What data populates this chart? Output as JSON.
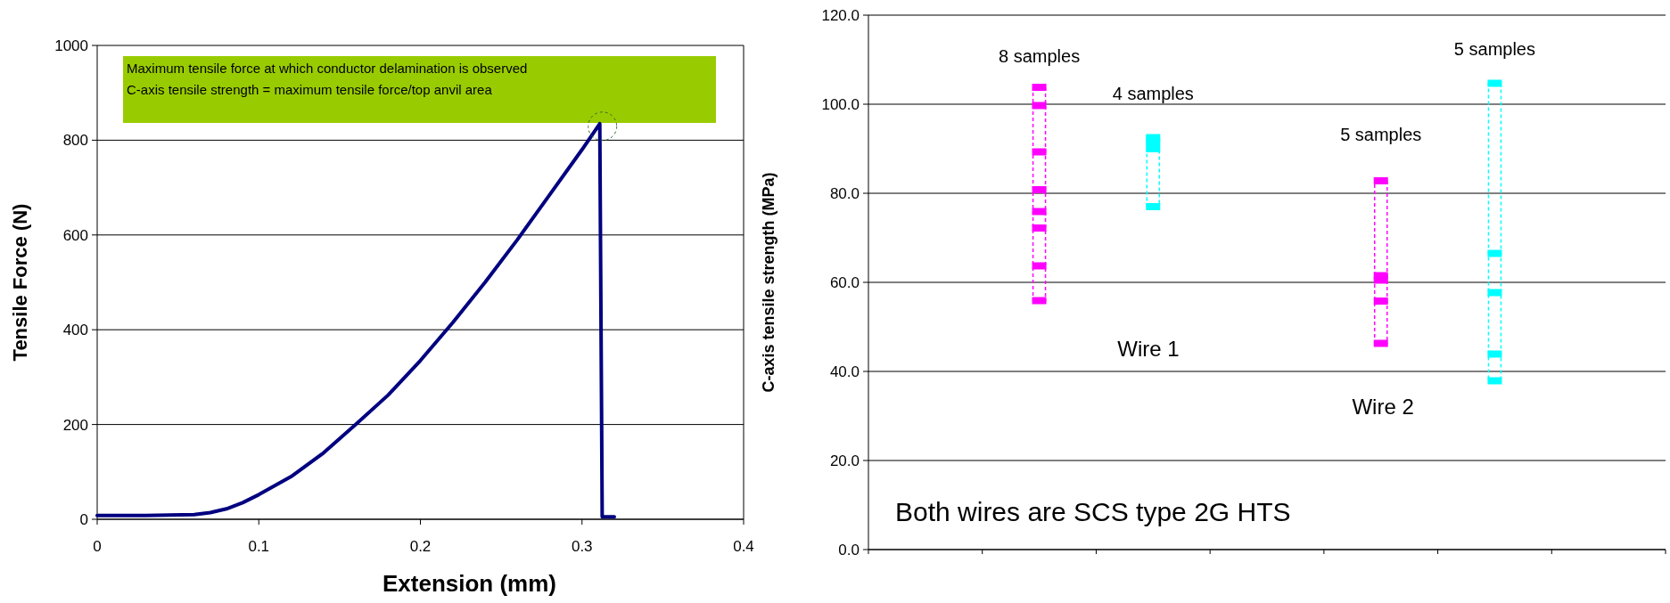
{
  "chart_data": [
    {
      "type": "line",
      "xlabel": "Extension (mm)",
      "ylabel": "Tensile Force (N)",
      "xlim": [
        0,
        0.4
      ],
      "xticks": [
        0,
        0.1,
        0.2,
        0.3,
        0.4
      ],
      "ylim": [
        0,
        1000
      ],
      "yticks": [
        0,
        200,
        400,
        600,
        800,
        1000
      ],
      "grid": "y",
      "line_style": "solid",
      "marker": "none",
      "annotations": [
        "Maximum tensile force at which conductor delamination is observed",
        "C-axis tensile strength = maximum tensile force/top anvil area"
      ],
      "series": [
        {
          "color": "#000080",
          "x": [
            0,
            0.03,
            0.06,
            0.07,
            0.08,
            0.09,
            0.1,
            0.12,
            0.14,
            0.16,
            0.18,
            0.2,
            0.22,
            0.24,
            0.26,
            0.28,
            0.3,
            0.311,
            0.3125,
            0.32
          ],
          "values": [
            8,
            8,
            10,
            14,
            22,
            35,
            52,
            90,
            140,
            200,
            262,
            335,
            415,
            500,
            590,
            685,
            780,
            835,
            5,
            5
          ]
        }
      ]
    },
    {
      "type": "scatter",
      "ylabel": "C-axis tensile strength (MPa)",
      "categories": [
        null,
        null,
        null,
        null,
        null,
        null,
        null
      ],
      "ylim": [
        0,
        120
      ],
      "yticks": [
        {
          "value": 0,
          "label": "0.0"
        },
        {
          "value": 20,
          "label": "20.0"
        },
        {
          "value": 40,
          "label": "40.0"
        },
        {
          "value": 60,
          "label": "60.0"
        },
        {
          "value": 80,
          "label": "80.0"
        },
        {
          "value": 100,
          "label": "100.0"
        },
        {
          "value": 120,
          "label": "120.0"
        }
      ],
      "grid": "y",
      "annotations": [
        "8 samples",
        "4 samples",
        "5 samples",
        "5 samples",
        "Wire 1",
        "Wire 2",
        "Both wires are SCS type 2G HTS"
      ],
      "series": [
        {
          "values": [
            null,
            103.8,
            92.5,
            null,
            82.8,
            104.7,
            null
          ],
          "colors": [
            null,
            "#ff00ff",
            "#00ffff",
            null,
            "#ff00ff",
            "#00ffff",
            null
          ]
        },
        {
          "values": [
            null,
            99.7,
            91.5,
            null,
            61.5,
            66.5,
            null
          ],
          "colors": [
            null,
            "#ff00ff",
            "#00ffff",
            null,
            "#ff00ff",
            "#00ffff",
            null
          ]
        },
        {
          "values": [
            null,
            89.3,
            90.0,
            null,
            60.5,
            57.7,
            null
          ],
          "colors": [
            null,
            "#ff00ff",
            "#00ffff",
            null,
            "#ff00ff",
            "#00ffff",
            null
          ]
        },
        {
          "values": [
            null,
            80.8,
            77.0,
            null,
            55.8,
            43.9,
            null
          ],
          "colors": [
            null,
            "#ff00ff",
            "#00ffff",
            null,
            "#ff00ff",
            "#00ffff",
            null
          ]
        },
        {
          "values": [
            null,
            75.9,
            null,
            null,
            46.3,
            37.9,
            null
          ],
          "colors": [
            null,
            "#ff00ff",
            null,
            null,
            "#ff00ff",
            "#00ffff",
            null
          ]
        },
        {
          "values": [
            null,
            72.2,
            null,
            null,
            null,
            null,
            null
          ],
          "colors": [
            null,
            "#ff00ff",
            null,
            null,
            null,
            null,
            null
          ]
        },
        {
          "values": [
            null,
            63.7,
            null,
            null,
            null,
            null,
            null
          ],
          "colors": [
            null,
            "#ff00ff",
            null,
            null,
            null,
            null,
            null
          ]
        },
        {
          "values": [
            null,
            55.9,
            null,
            null,
            null,
            null,
            null
          ],
          "colors": [
            null,
            "#ff00ff",
            null,
            null,
            null,
            null,
            null
          ]
        }
      ]
    }
  ]
}
